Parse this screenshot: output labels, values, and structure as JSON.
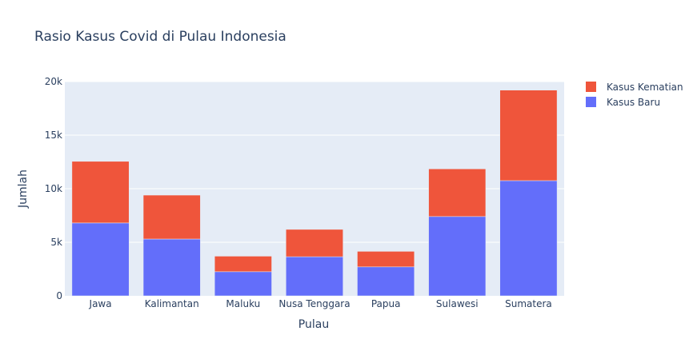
{
  "chart_data": {
    "type": "bar",
    "barmode": "stack",
    "title": "Rasio Kasus Covid di Pulau Indonesia",
    "xlabel": "Pulau",
    "ylabel": "Jumlah",
    "categories": [
      "Jawa",
      "Kalimantan",
      "Maluku",
      "Nusa Tenggara",
      "Papua",
      "Sulawesi",
      "Sumatera"
    ],
    "ylim": [
      0,
      20000
    ],
    "yticks": [
      0,
      5000,
      10000,
      15000,
      20000
    ],
    "ytick_labels": [
      "0",
      "5k",
      "10k",
      "15k",
      "20k"
    ],
    "series": [
      {
        "name": "Kasus Baru",
        "color": "#636efa",
        "values": [
          6800,
          5300,
          2250,
          3650,
          2700,
          7400,
          10750
        ]
      },
      {
        "name": "Kasus Kematian",
        "color": "#ef553b",
        "values": [
          5750,
          4100,
          1450,
          2550,
          1450,
          4450,
          8450
        ]
      }
    ],
    "legend_order": [
      "Kasus Kematian",
      "Kasus Baru"
    ],
    "legend_position": "top-right",
    "grid": true,
    "plot_background": "#e5ecf6"
  }
}
